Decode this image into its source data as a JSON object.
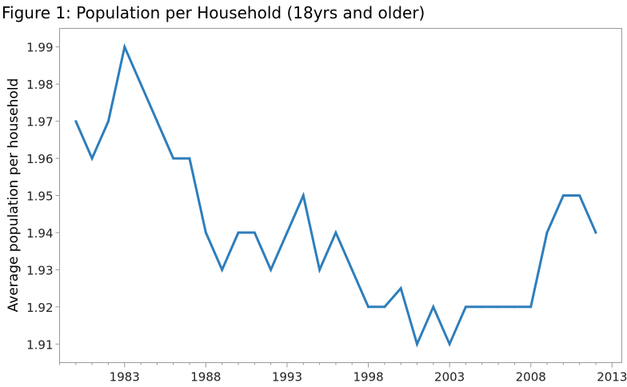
{
  "chart_data": {
    "type": "line",
    "title": "Figure 1: Population per Household (18yrs and older)",
    "xlabel": "",
    "ylabel": "Average population per household",
    "xlim": [
      1979,
      2013.6
    ],
    "ylim": [
      1.905,
      1.995
    ],
    "x_ticks": [
      1983,
      1988,
      1993,
      1998,
      2003,
      2008,
      2013
    ],
    "y_ticks": [
      1.91,
      1.92,
      1.93,
      1.94,
      1.95,
      1.96,
      1.97,
      1.98,
      1.99
    ],
    "y_tick_labels": [
      "1.91",
      "1.92",
      "1.93",
      "1.94",
      "1.95",
      "1.96",
      "1.97",
      "1.98",
      "1.99"
    ],
    "grid": false,
    "legend": "none",
    "line_color": "#2e7ebc",
    "x": [
      1980,
      1981,
      1982,
      1983,
      1984,
      1985,
      1986,
      1987,
      1988,
      1989,
      1990,
      1991,
      1992,
      1993,
      1994,
      1995,
      1996,
      1997,
      1998,
      1999,
      2000,
      2001,
      2002,
      2003,
      2004,
      2005,
      2006,
      2007,
      2008,
      2009,
      2010,
      2011,
      2012
    ],
    "series": [
      {
        "values": [
          1.97,
          1.96,
          1.97,
          1.99,
          1.98,
          1.97,
          1.96,
          1.96,
          1.94,
          1.93,
          1.94,
          1.94,
          1.93,
          1.94,
          1.95,
          1.93,
          1.94,
          1.93,
          1.92,
          1.92,
          1.925,
          1.91,
          1.92,
          1.91,
          1.92,
          1.92,
          1.92,
          1.92,
          1.92,
          1.94,
          1.95,
          1.95,
          1.94
        ]
      }
    ]
  }
}
